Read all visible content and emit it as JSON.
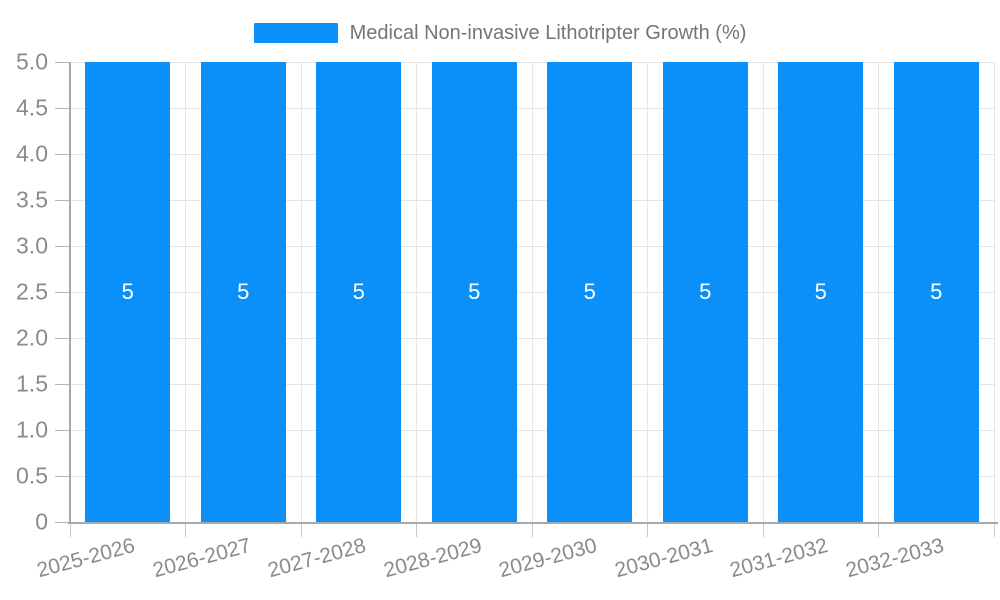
{
  "chart_data": {
    "type": "bar",
    "title": "Medical Non-invasive Lithotripter Growth (%)",
    "xlabel": "",
    "ylabel": "",
    "categories": [
      "2025-2026",
      "2026-2027",
      "2027-2028",
      "2028-2029",
      "2029-2030",
      "2030-2031",
      "2031-2032",
      "2032-2033"
    ],
    "series": [
      {
        "name": "Medical Non-invasive Lithotripter Growth (%)",
        "values": [
          5,
          5,
          5,
          5,
          5,
          5,
          5,
          5
        ]
      }
    ],
    "bar_value_labels": [
      "5",
      "5",
      "5",
      "5",
      "5",
      "5",
      "5",
      "5"
    ],
    "ylim": [
      0,
      5
    ],
    "ytick_values": [
      0,
      0.5,
      1,
      1.5,
      2,
      2.5,
      3,
      3.5,
      4,
      4.5,
      5
    ],
    "ytick_labels": [
      "0",
      "0.5",
      "1.0",
      "1.5",
      "2.0",
      "2.5",
      "3.0",
      "3.5",
      "4.0",
      "4.5",
      "5.0"
    ],
    "grid": "on",
    "legend_position": "top-center",
    "colors": {
      "bar": "#0a90f8",
      "grid": "#e5e5e5",
      "axis": "#a8a8a8",
      "tick_text": "#8a8a8a",
      "title_text": "#757575",
      "bar_label_text": "#ffffff"
    }
  },
  "legend": {
    "label": "Medical Non-invasive Lithotripter Growth (%)"
  }
}
